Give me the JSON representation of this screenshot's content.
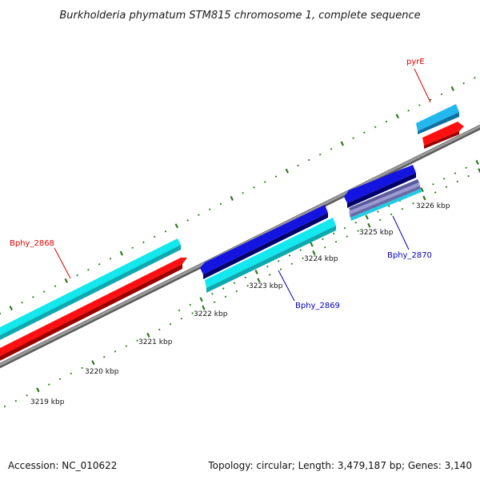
{
  "title": "Burkholderia phymatum STM815 chromosome 1, complete sequence",
  "footer": {
    "accession": "Accession: NC_010622",
    "summary": "Topology: circular; Length: 3,479,187 bp; Genes: 3,140"
  },
  "ticks": [
    "3219 kbp",
    "3220 kbp",
    "3221 kbp",
    "3222 kbp",
    "3223 kbp",
    "3224 kbp",
    "3225 kbp",
    "3226 kbp"
  ],
  "genes": [
    {
      "name": "Bphy_2868",
      "color": "#dd0000"
    },
    {
      "name": "Bphy_2869",
      "color": "#0000bb"
    },
    {
      "name": "Bphy_2870",
      "color": "#0000bb"
    },
    {
      "name": "pyrE",
      "color": "#dd0000"
    }
  ],
  "colors": {
    "cds_forward": "#ff1010",
    "orf_forward": "#12e8ee",
    "cds_reverse": "#1414e0",
    "orf_reverse": "#12e0ea",
    "orf_reverse_light": "#22b8ee",
    "backbone": "#888888",
    "tick": "#2a7a1a"
  }
}
